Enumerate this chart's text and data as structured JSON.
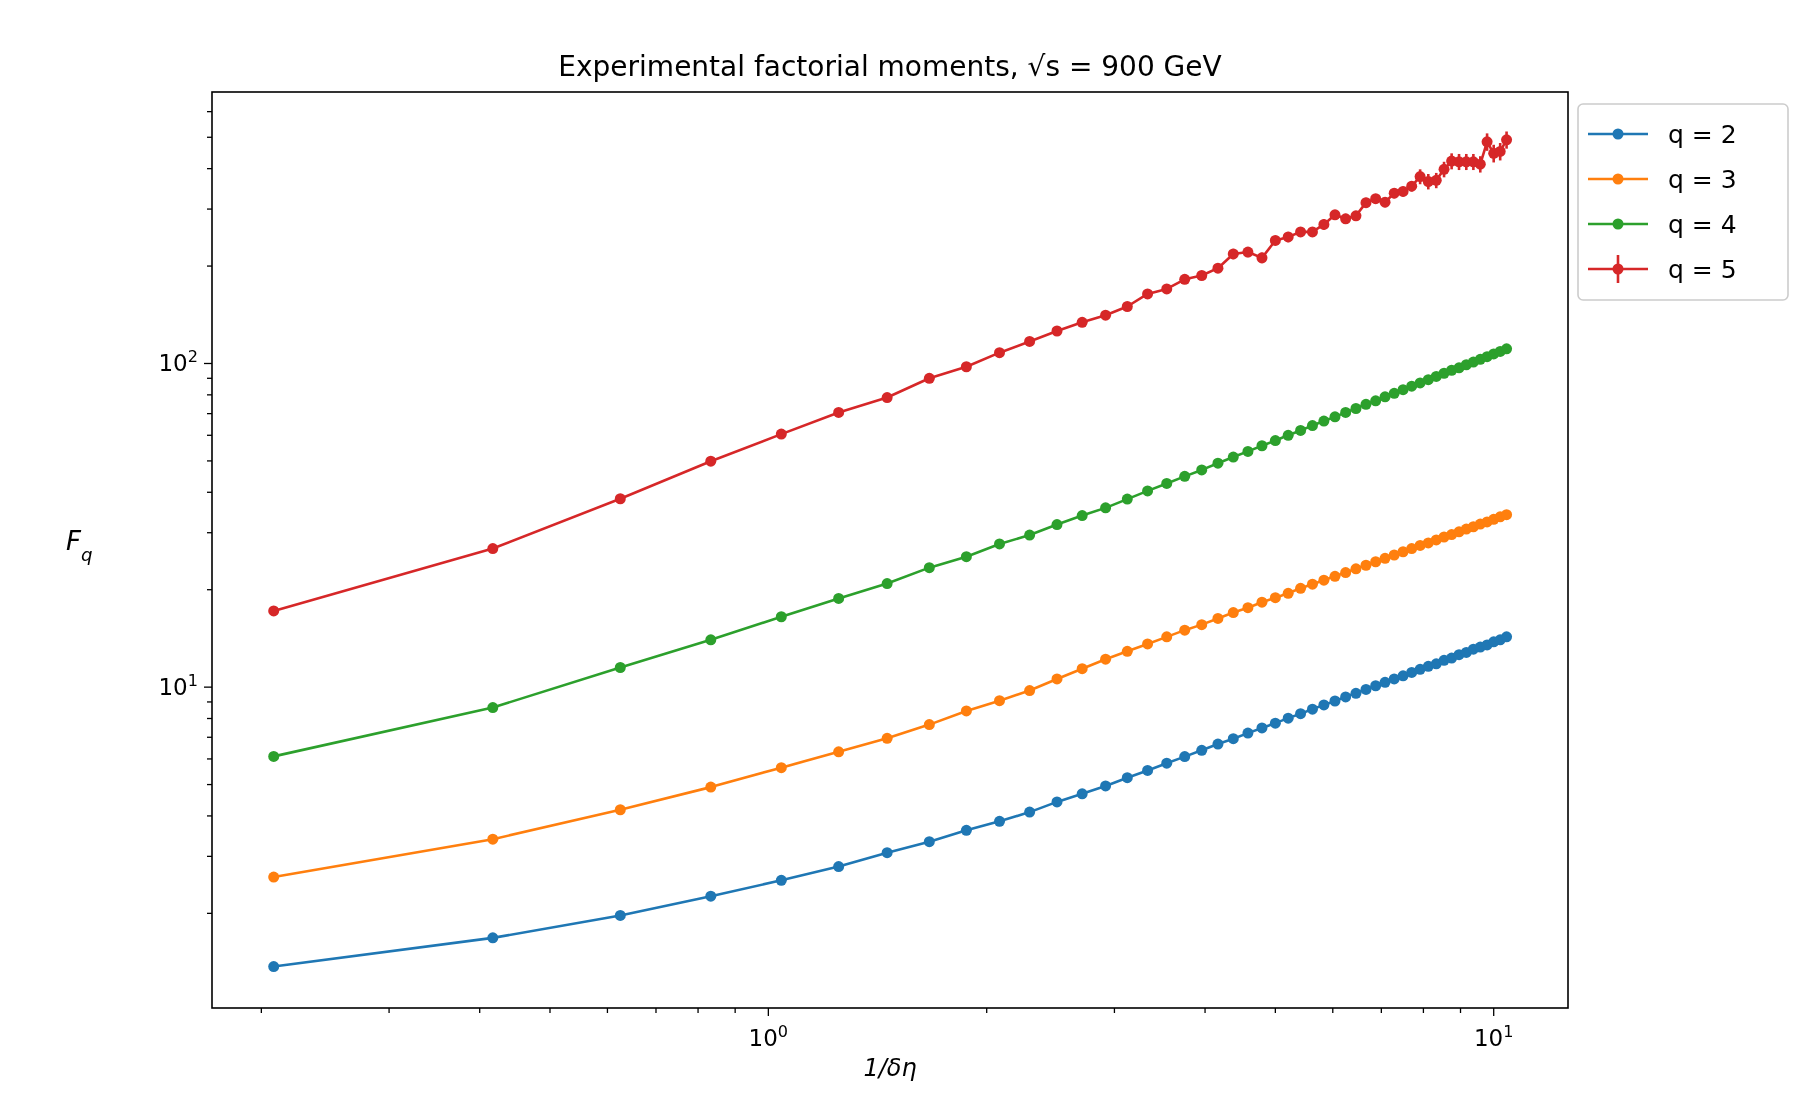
{
  "chart_data": {
    "type": "line",
    "title": "Experimental factorial moments, √s =  900 GeV",
    "xlabel": "1/δη",
    "ylabel": "F$_{q}$",
    "log": "xy",
    "grid": false,
    "legend": "top right",
    "marker": "circle",
    "line_style": "solid",
    "xlim": [
      0.171,
      12.66
    ],
    "ylim": [
      1.02,
      690
    ],
    "xticks": [
      {
        "value": 0.2,
        "label": null
      },
      {
        "value": 0.3,
        "label": null
      },
      {
        "value": 0.4,
        "label": null
      },
      {
        "value": 0.5,
        "label": null
      },
      {
        "value": 0.6,
        "label": null
      },
      {
        "value": 0.7,
        "label": null
      },
      {
        "value": 0.8,
        "label": null
      },
      {
        "value": 0.9,
        "label": null
      },
      {
        "value": 1,
        "label": "10$^{0}$"
      },
      {
        "value": 2,
        "label": null
      },
      {
        "value": 3,
        "label": null
      },
      {
        "value": 4,
        "label": null
      },
      {
        "value": 5,
        "label": null
      },
      {
        "value": 6,
        "label": null
      },
      {
        "value": 7,
        "label": null
      },
      {
        "value": 8,
        "label": null
      },
      {
        "value": 9,
        "label": null
      },
      {
        "value": 10,
        "label": "10$^{1}$"
      }
    ],
    "yticks": [
      {
        "value": 2,
        "label": null
      },
      {
        "value": 3,
        "label": null
      },
      {
        "value": 4,
        "label": null
      },
      {
        "value": 5,
        "label": null
      },
      {
        "value": 6,
        "label": null
      },
      {
        "value": 7,
        "label": null
      },
      {
        "value": 8,
        "label": null
      },
      {
        "value": 9,
        "label": null
      },
      {
        "value": 10,
        "label": "10$^{1}$"
      },
      {
        "value": 20,
        "label": null
      },
      {
        "value": 30,
        "label": null
      },
      {
        "value": 40,
        "label": null
      },
      {
        "value": 50,
        "label": null
      },
      {
        "value": 60,
        "label": null
      },
      {
        "value": 70,
        "label": null
      },
      {
        "value": 80,
        "label": null
      },
      {
        "value": 90,
        "label": null
      },
      {
        "value": 100,
        "label": "10$^{2}$"
      },
      {
        "value": 200,
        "label": null
      },
      {
        "value": 300,
        "label": null
      },
      {
        "value": 400,
        "label": null
      },
      {
        "value": 500,
        "label": null
      },
      {
        "value": 600,
        "label": null
      }
    ],
    "x": [
      0.208,
      0.417,
      0.625,
      0.833,
      1.042,
      1.25,
      1.458,
      1.667,
      1.875,
      2.083,
      2.292,
      2.5,
      2.708,
      2.917,
      3.125,
      3.333,
      3.542,
      3.75,
      3.958,
      4.167,
      4.375,
      4.583,
      4.792,
      5,
      5.208,
      5.417,
      5.625,
      5.833,
      6.042,
      6.25,
      6.458,
      6.667,
      6.875,
      7.083,
      7.292,
      7.5,
      7.708,
      7.917,
      8.125,
      8.333,
      8.542,
      8.75,
      8.958,
      9.167,
      9.375,
      9.583,
      9.792,
      10,
      10.208,
      10.417
    ],
    "series": [
      {
        "name": "q = 2",
        "color": "#1f77b4",
        "values": [
          1.37,
          1.68,
          1.97,
          2.26,
          2.53,
          2.79,
          3.08,
          3.33,
          3.61,
          3.85,
          4.11,
          4.42,
          4.68,
          4.95,
          5.25,
          5.53,
          5.82,
          6.1,
          6.38,
          6.67,
          6.93,
          7.21,
          7.48,
          7.74,
          8.02,
          8.28,
          8.55,
          8.81,
          9.06,
          9.33,
          9.57,
          9.84,
          10.1,
          10.35,
          10.6,
          10.84,
          11.1,
          11.35,
          11.6,
          11.8,
          12.1,
          12.3,
          12.6,
          12.8,
          13.1,
          13.3,
          13.5,
          13.8,
          14,
          14.3
        ]
      },
      {
        "name": "q = 3",
        "color": "#ff7f0e",
        "values": [
          2.59,
          3.39,
          4.18,
          4.91,
          5.64,
          6.31,
          6.95,
          7.66,
          8.44,
          9.08,
          9.76,
          10.6,
          11.4,
          12.2,
          12.9,
          13.6,
          14.3,
          15,
          15.6,
          16.3,
          17,
          17.6,
          18.3,
          18.9,
          19.5,
          20.2,
          20.8,
          21.4,
          22,
          22.6,
          23.2,
          23.8,
          24.4,
          25,
          25.6,
          26.2,
          26.8,
          27.4,
          27.9,
          28.5,
          29.1,
          29.6,
          30.2,
          30.8,
          31.3,
          31.9,
          32.4,
          33,
          33.6,
          34.1
        ]
      },
      {
        "name": "q = 4",
        "color": "#2ca02c",
        "values": [
          6.11,
          8.65,
          11.5,
          14,
          16.5,
          18.8,
          20.9,
          23.4,
          25.3,
          27.7,
          29.5,
          31.8,
          33.9,
          35.8,
          38.1,
          40.4,
          42.6,
          44.8,
          46.9,
          49.2,
          51.4,
          53.5,
          55.7,
          57.8,
          60,
          62.1,
          64.3,
          66.4,
          68.4,
          70.6,
          72.6,
          74.8,
          76.7,
          78.9,
          80.9,
          83,
          85.1,
          87.1,
          89.1,
          91.2,
          93.3,
          95.3,
          97,
          99.1,
          101,
          103,
          105,
          107,
          109,
          111
        ]
      },
      {
        "name": "q = 5",
        "color": "#d62728",
        "values": [
          17.2,
          26.8,
          38.2,
          49.9,
          60.5,
          70.6,
          78.5,
          90,
          97.7,
          108,
          117,
          126,
          134,
          141,
          150,
          164,
          170,
          182,
          187,
          197,
          218,
          221,
          212,
          240,
          246,
          255,
          255,
          269,
          288,
          280,
          286,
          314,
          323,
          315,
          336,
          340,
          353,
          378,
          365,
          368,
          398,
          422,
          420,
          420,
          420,
          413,
          484,
          446,
          452,
          491
        ],
        "errors": [
          null,
          null,
          null,
          null,
          null,
          null,
          null,
          null,
          null,
          null,
          null,
          null,
          null,
          null,
          null,
          null,
          null,
          null,
          null,
          null,
          8,
          8,
          8,
          8,
          9,
          9,
          9,
          10,
          10,
          10,
          10,
          11,
          11,
          11,
          12,
          12,
          13,
          20,
          20,
          20,
          22,
          24,
          24,
          24,
          24,
          24,
          30,
          28,
          28,
          30
        ]
      }
    ]
  }
}
